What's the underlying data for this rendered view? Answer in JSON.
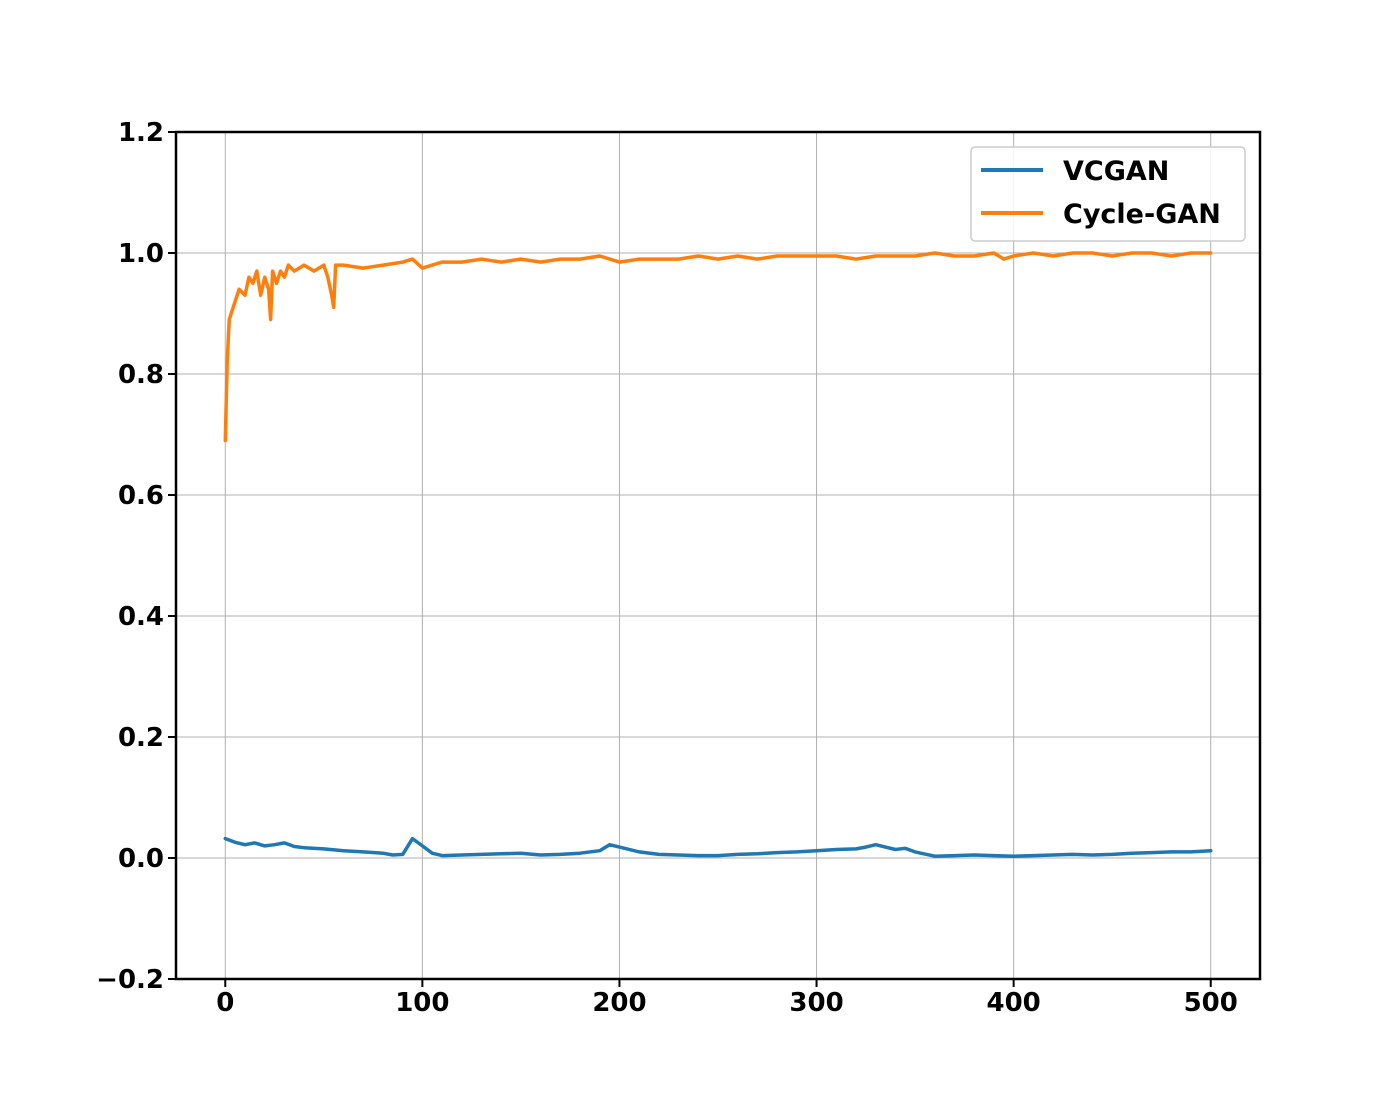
{
  "chart_data": {
    "type": "line",
    "xlim": [
      -25,
      525
    ],
    "ylim": [
      -0.2,
      1.2
    ],
    "x_ticks": [
      0,
      100,
      200,
      300,
      400,
      500
    ],
    "x_tick_labels": [
      "0",
      "100",
      "200",
      "300",
      "400",
      "500"
    ],
    "y_ticks": [
      -0.2,
      0.0,
      0.2,
      0.4,
      0.6,
      0.8,
      1.0,
      1.2
    ],
    "y_tick_labels": [
      "−0.2",
      "0.0",
      "0.2",
      "0.4",
      "0.6",
      "0.8",
      "1.0",
      "1.2"
    ],
    "grid": true,
    "legend_position": "top-right",
    "series": [
      {
        "name": "VCGAN",
        "color": "#1f77b4",
        "x": [
          0,
          5,
          10,
          15,
          20,
          25,
          30,
          35,
          40,
          50,
          60,
          70,
          80,
          85,
          90,
          95,
          100,
          105,
          110,
          120,
          130,
          140,
          150,
          160,
          170,
          180,
          190,
          195,
          200,
          210,
          220,
          230,
          240,
          250,
          260,
          270,
          280,
          290,
          300,
          310,
          320,
          325,
          330,
          340,
          345,
          350,
          360,
          370,
          380,
          390,
          400,
          410,
          420,
          430,
          440,
          450,
          460,
          470,
          480,
          490,
          500
        ],
        "y": [
          0.032,
          0.026,
          0.022,
          0.025,
          0.02,
          0.022,
          0.025,
          0.019,
          0.017,
          0.015,
          0.012,
          0.01,
          0.008,
          0.005,
          0.006,
          0.032,
          0.02,
          0.008,
          0.004,
          0.005,
          0.006,
          0.007,
          0.008,
          0.005,
          0.006,
          0.008,
          0.012,
          0.022,
          0.018,
          0.01,
          0.006,
          0.005,
          0.004,
          0.004,
          0.006,
          0.007,
          0.009,
          0.01,
          0.012,
          0.014,
          0.015,
          0.018,
          0.022,
          0.014,
          0.016,
          0.01,
          0.003,
          0.004,
          0.005,
          0.004,
          0.003,
          0.004,
          0.005,
          0.006,
          0.005,
          0.006,
          0.008,
          0.009,
          0.01,
          0.01,
          0.012
        ]
      },
      {
        "name": "Cycle-GAN",
        "color": "#ff7f0e",
        "x": [
          0,
          1,
          2,
          3,
          5,
          7,
          10,
          12,
          14,
          16,
          18,
          20,
          22,
          23,
          24,
          26,
          28,
          30,
          32,
          35,
          40,
          45,
          50,
          52,
          54,
          55,
          56,
          60,
          70,
          80,
          90,
          95,
          100,
          110,
          120,
          130,
          140,
          150,
          160,
          170,
          180,
          190,
          200,
          210,
          220,
          230,
          240,
          250,
          260,
          270,
          280,
          290,
          300,
          310,
          320,
          330,
          340,
          350,
          360,
          370,
          380,
          390,
          395,
          400,
          410,
          420,
          430,
          440,
          450,
          460,
          470,
          480,
          490,
          500
        ],
        "y": [
          0.69,
          0.82,
          0.89,
          0.9,
          0.92,
          0.94,
          0.93,
          0.96,
          0.95,
          0.97,
          0.93,
          0.96,
          0.94,
          0.89,
          0.97,
          0.95,
          0.97,
          0.96,
          0.98,
          0.97,
          0.98,
          0.97,
          0.98,
          0.96,
          0.93,
          0.91,
          0.98,
          0.98,
          0.975,
          0.98,
          0.985,
          0.99,
          0.975,
          0.985,
          0.985,
          0.99,
          0.985,
          0.99,
          0.985,
          0.99,
          0.99,
          0.995,
          0.985,
          0.99,
          0.99,
          0.99,
          0.995,
          0.99,
          0.995,
          0.99,
          0.995,
          0.995,
          0.995,
          0.995,
          0.99,
          0.995,
          0.995,
          0.995,
          1.0,
          0.995,
          0.995,
          1.0,
          0.99,
          0.995,
          1.0,
          0.995,
          1.0,
          1.0,
          0.995,
          1.0,
          1.0,
          0.995,
          1.0,
          1.0
        ]
      }
    ]
  }
}
